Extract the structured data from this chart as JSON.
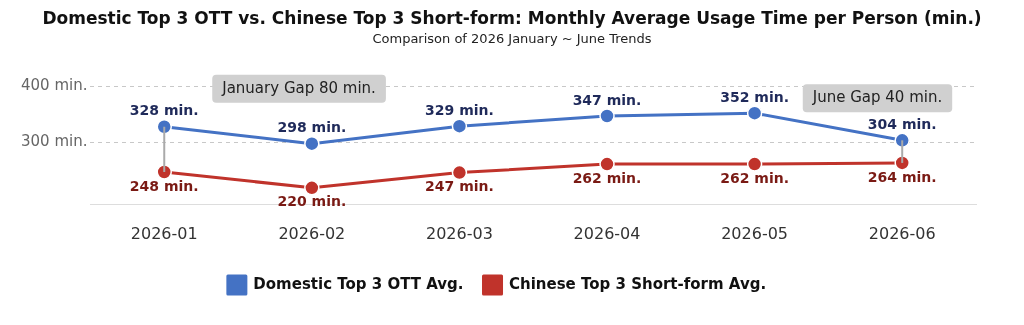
{
  "chart_data": {
    "type": "line",
    "title": "Domestic Top 3 OTT vs. Chinese Top 3 Short-form: Monthly Average Usage Time per Person (min.)",
    "subtitle": "Comparison of 2026 January ~ June Trends",
    "categories": [
      "2026-01",
      "2026-02",
      "2026-03",
      "2026-04",
      "2026-05",
      "2026-06"
    ],
    "series": [
      {
        "name": "Domestic Top 3 OTT Avg.",
        "color": "#4472c4",
        "values": [
          328,
          298,
          329,
          347,
          352,
          304
        ],
        "value_labels": [
          "328 min.",
          "298 min.",
          "329 min.",
          "347 min.",
          "352 min.",
          "304 min."
        ]
      },
      {
        "name": "Chinese Top 3 Short-form Avg.",
        "color": "#c0332b",
        "values": [
          248,
          220,
          247,
          262,
          262,
          264
        ],
        "value_labels": [
          "248 min.",
          "220 min.",
          "247 min.",
          "262 min.",
          "262 min.",
          "264 min."
        ]
      }
    ],
    "ylim": [
      190,
      400
    ],
    "yticks": [
      {
        "value": 300,
        "label": "300 min."
      },
      {
        "value": 400,
        "label": "400 min."
      }
    ],
    "grid": "y",
    "legend": "bottom",
    "marker": "circle",
    "line_style": "solid",
    "tick_labels": "xy",
    "annotations": [
      "January Gap 80 min.",
      "June Gap 40 min."
    ]
  }
}
